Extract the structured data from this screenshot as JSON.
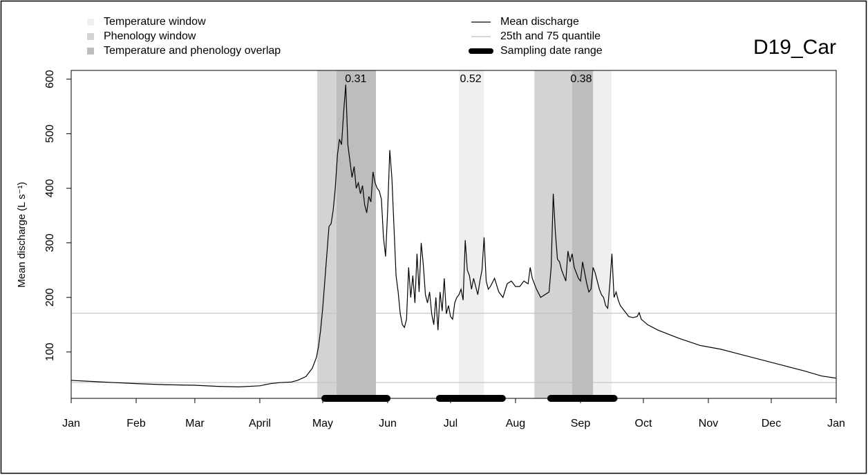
{
  "chart_data": {
    "type": "line",
    "title": "D19_Car",
    "ylabel": "Mean discharge (L s⁻¹)",
    "xlim": [
      0,
      365
    ],
    "ylim": [
      15,
      616
    ],
    "xticks": [
      {
        "value": 0,
        "label": "Jan"
      },
      {
        "value": 31,
        "label": "Feb"
      },
      {
        "value": 59,
        "label": "Mar"
      },
      {
        "value": 90,
        "label": "April"
      },
      {
        "value": 120,
        "label": "May"
      },
      {
        "value": 151,
        "label": "Jun"
      },
      {
        "value": 181,
        "label": "Jul"
      },
      {
        "value": 212,
        "label": "Aug"
      },
      {
        "value": 243,
        "label": "Sep"
      },
      {
        "value": 273,
        "label": "Oct"
      },
      {
        "value": 304,
        "label": "Nov"
      },
      {
        "value": 334,
        "label": "Dec"
      },
      {
        "value": 365,
        "label": "Jan"
      }
    ],
    "yticks": [
      100,
      200,
      300,
      400,
      500,
      600
    ],
    "windows": [
      {
        "name": "Temperature window",
        "color": "#efefef",
        "spans": [
          [
            185,
            197
          ],
          [
            248.6,
            257.8
          ]
        ]
      },
      {
        "name": "Phenology window",
        "color": "#d3d3d3",
        "spans": [
          [
            117.4,
            126.6
          ],
          [
            221,
            239
          ]
        ]
      },
      {
        "name": "Temperature and phenology overlap",
        "color": "#bdbdbd",
        "spans": [
          [
            126.6,
            145.4
          ],
          [
            239,
            249
          ]
        ]
      }
    ],
    "series": [
      {
        "name": "Mean discharge",
        "color": "#000000",
        "x": [
          0,
          10,
          20,
          31,
          45,
          59,
          70,
          80,
          90,
          95,
          100,
          105,
          108,
          112,
          115,
          117,
          118,
          119,
          120,
          121,
          122,
          123,
          124,
          125,
          126,
          127,
          128,
          129,
          130,
          131,
          132,
          133,
          134,
          135,
          136,
          137,
          138,
          139,
          140,
          141,
          142,
          143,
          144,
          145,
          146,
          147,
          148,
          149,
          150,
          151,
          152,
          153,
          154,
          155,
          156,
          157,
          158,
          159,
          160,
          161,
          162,
          163,
          164,
          165,
          166,
          167,
          168,
          169,
          170,
          171,
          172,
          173,
          174,
          175,
          176,
          177,
          178,
          179,
          180,
          181,
          182,
          183,
          184,
          185,
          186,
          187,
          188,
          189,
          190,
          191,
          192,
          193,
          194,
          195,
          196,
          197,
          198,
          199,
          200,
          202,
          204,
          206,
          208,
          210,
          212,
          214,
          216,
          218,
          219,
          220,
          222,
          224,
          226,
          228,
          229,
          230,
          231,
          232,
          233,
          234,
          235,
          236,
          237,
          238,
          239,
          240,
          241,
          242,
          243,
          244,
          245,
          246,
          247,
          248,
          249,
          250,
          251,
          252,
          253,
          254,
          255,
          256,
          257,
          258,
          259,
          260,
          261,
          262,
          264,
          266,
          268,
          270,
          271,
          272,
          275,
          280,
          290,
          300,
          310,
          320,
          330,
          340,
          350,
          358,
          365
        ],
        "values": [
          48,
          46,
          44,
          42,
          40,
          39,
          37,
          36,
          38,
          42,
          44,
          45,
          48,
          55,
          70,
          90,
          110,
          140,
          180,
          230,
          280,
          330,
          335,
          360,
          400,
          460,
          490,
          480,
          540,
          590,
          480,
          450,
          420,
          440,
          400,
          410,
          390,
          405,
          370,
          355,
          385,
          375,
          430,
          410,
          400,
          395,
          380,
          310,
          275,
          360,
          470,
          420,
          330,
          240,
          210,
          170,
          150,
          145,
          160,
          255,
          200,
          240,
          190,
          280,
          210,
          300,
          260,
          205,
          190,
          210,
          170,
          150,
          200,
          140,
          210,
          175,
          235,
          170,
          185,
          165,
          160,
          190,
          200,
          205,
          215,
          195,
          305,
          250,
          240,
          215,
          235,
          220,
          205,
          230,
          250,
          310,
          230,
          215,
          220,
          235,
          210,
          200,
          225,
          230,
          220,
          220,
          230,
          225,
          255,
          235,
          215,
          200,
          205,
          210,
          255,
          390,
          320,
          270,
          265,
          250,
          240,
          230,
          285,
          265,
          280,
          255,
          245,
          235,
          230,
          265,
          245,
          225,
          210,
          215,
          255,
          245,
          230,
          215,
          205,
          200,
          185,
          180,
          225,
          280,
          200,
          210,
          195,
          185,
          175,
          165,
          163,
          165,
          172,
          160,
          150,
          140,
          125,
          112,
          105,
          95,
          85,
          75,
          65,
          56,
          52
        ]
      }
    ],
    "quantiles": {
      "name": "25th and 75 quantile",
      "color": "#c0c0c0",
      "values": [
        44,
        171
      ]
    },
    "sampling": {
      "name": "Sampling date range",
      "color": "#000000",
      "spans": [
        [
          121,
          150.7
        ],
        [
          175.7,
          205.7
        ],
        [
          228.8,
          259
        ]
      ]
    },
    "annotations": [
      {
        "x": 135.8,
        "text": "0.31"
      },
      {
        "x": 190.6,
        "text": "0.52"
      },
      {
        "x": 243.3,
        "text": "0.38"
      }
    ]
  }
}
